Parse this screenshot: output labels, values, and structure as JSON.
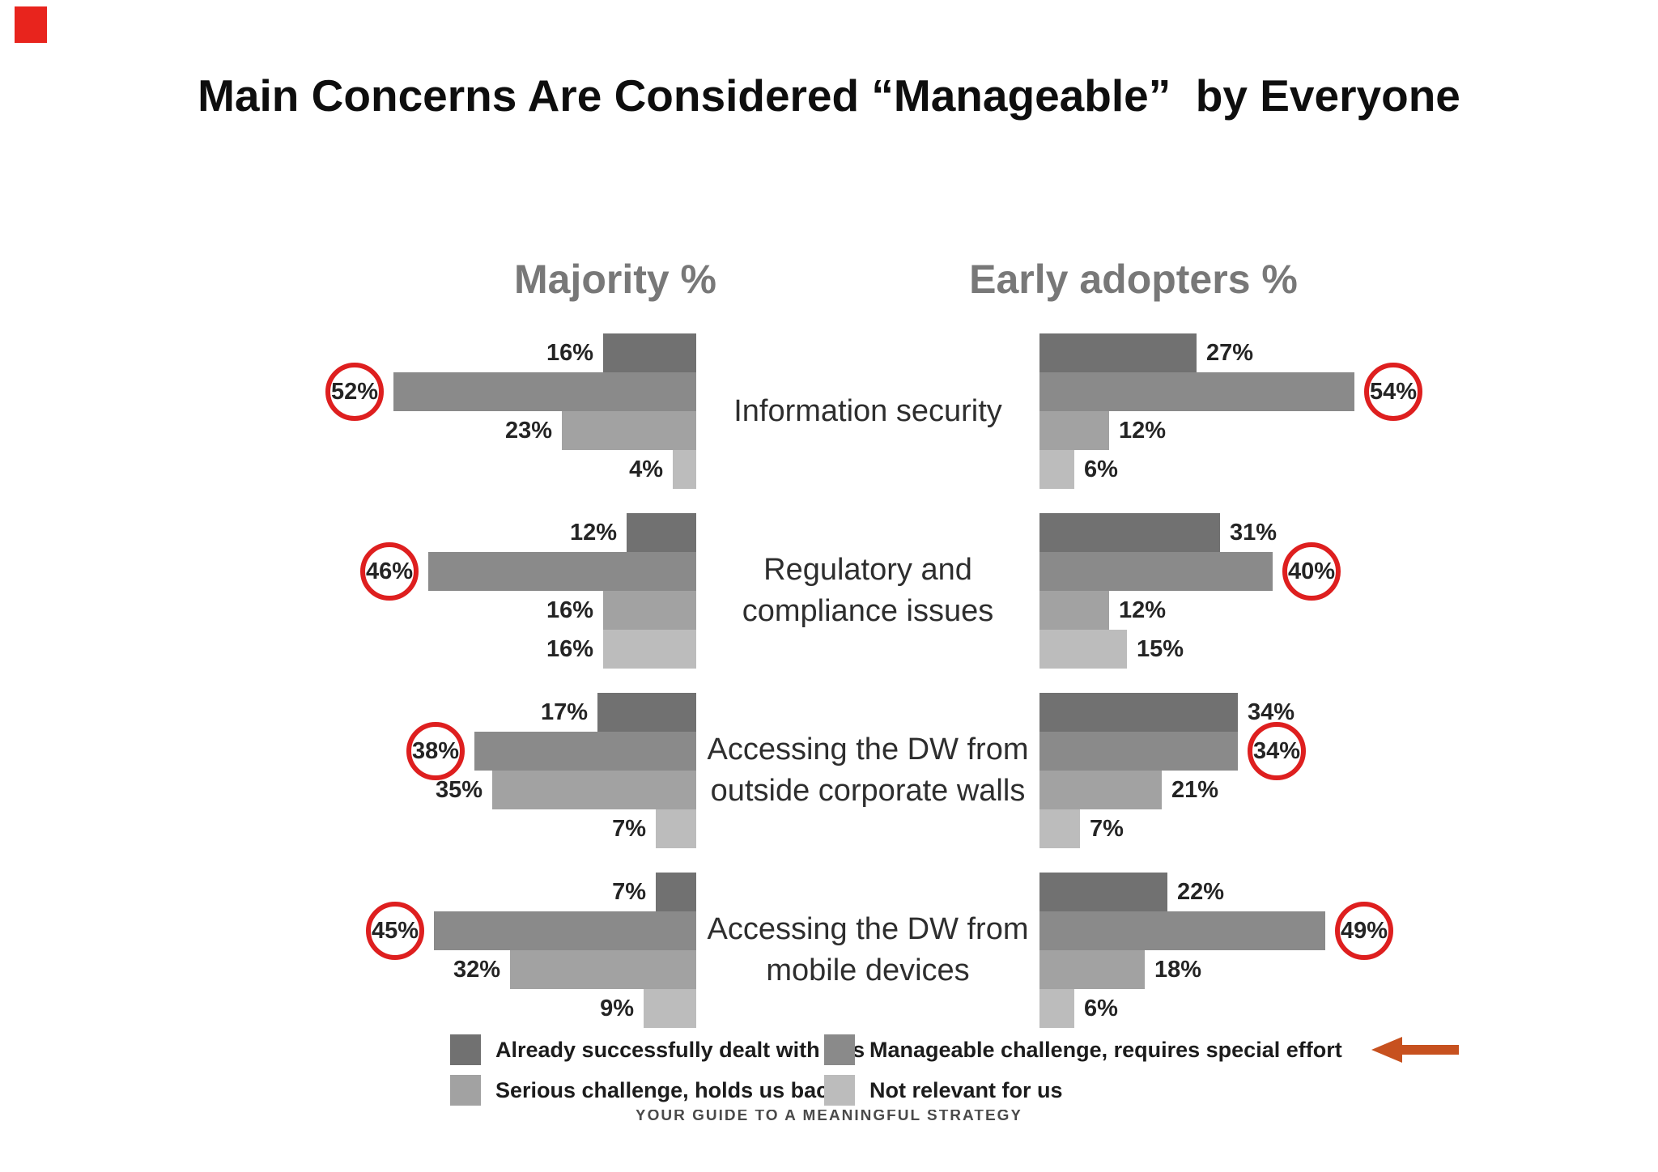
{
  "title": "Main Concerns Are Considered “Manageable”  by Everyone",
  "footer": "YOUR GUIDE TO A MEANINGFUL STRATEGY",
  "decorations": {
    "corner_square_color": "#e8241d",
    "highlight_circle_color": "#de1f1f",
    "annotation_arrow_color": "#c7511f"
  },
  "legend": {
    "items": [
      {
        "label": "Already successfully dealt with this",
        "color": "#717171",
        "arrow": false
      },
      {
        "label": "Manageable challenge, requires special effort",
        "color": "#8a8a8a",
        "arrow": true
      },
      {
        "label": "Serious challenge, holds us back",
        "color": "#a2a2a2",
        "arrow": false
      },
      {
        "label": "Not relevant for us",
        "color": "#bcbcbc",
        "arrow": false
      }
    ]
  },
  "chart_data": {
    "type": "bar",
    "orientation": "horizontal-mirrored",
    "title": "Main Concerns Are Considered “Manageable”  by Everyone",
    "panels": [
      "Majority %",
      "Early adopters %"
    ],
    "categories": [
      "Information security",
      "Regulatory and compliance issues",
      "Accessing the DW from outside corporate walls",
      "Accessing the DW from mobile devices"
    ],
    "series": [
      {
        "name": "Already successfully dealt with this",
        "color": "#717171",
        "highlighted": false,
        "majority": [
          16,
          12,
          17,
          7
        ],
        "early_adopters": [
          27,
          31,
          34,
          22
        ]
      },
      {
        "name": "Manageable challenge, requires special effort",
        "color": "#8a8a8a",
        "highlighted": true,
        "majority": [
          52,
          46,
          38,
          45
        ],
        "early_adopters": [
          54,
          40,
          34,
          49
        ]
      },
      {
        "name": "Serious challenge, holds us back",
        "color": "#a2a2a2",
        "highlighted": false,
        "majority": [
          23,
          16,
          35,
          32
        ],
        "early_adopters": [
          12,
          12,
          21,
          18
        ]
      },
      {
        "name": "Not relevant for us",
        "color": "#bcbcbc",
        "highlighted": false,
        "majority": [
          4,
          16,
          7,
          9
        ],
        "early_adopters": [
          6,
          15,
          7,
          6
        ]
      }
    ],
    "value_suffix": "%",
    "xlim_percent": [
      0,
      60
    ],
    "grid": false,
    "legend_position": "bottom",
    "highlights": "Series 'Manageable challenge, requires special effort' values are circled in red; red arrow in legend points to that series label"
  }
}
